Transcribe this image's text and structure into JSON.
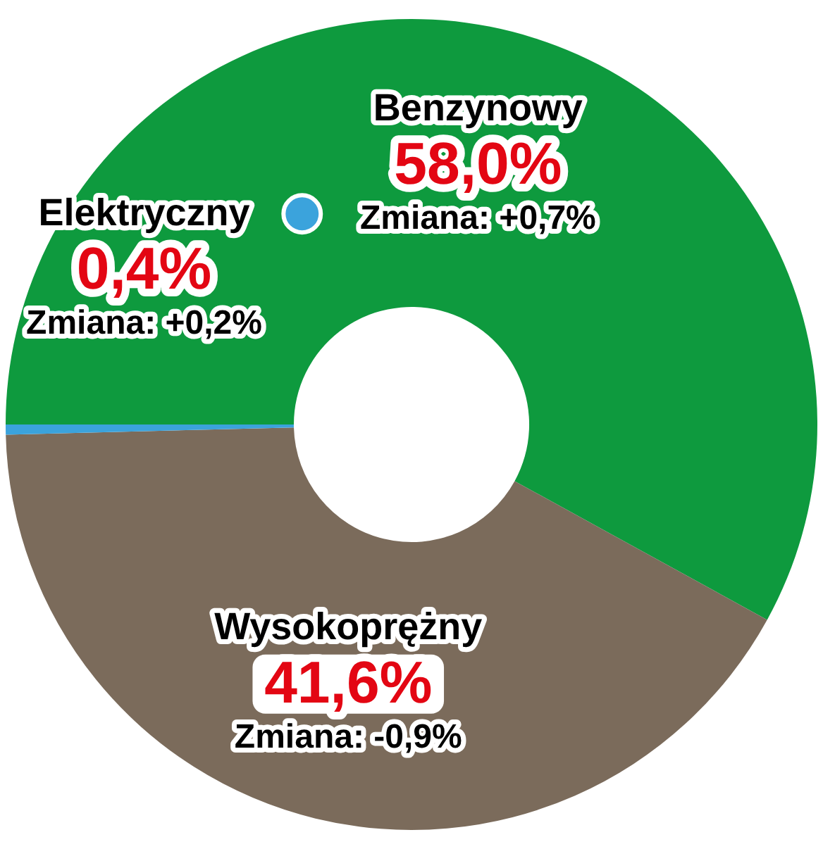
{
  "chart_data": {
    "type": "donut",
    "categories": [
      "Benzynowy",
      "Wysokoprężny",
      "Elektryczny"
    ],
    "values": [
      58.0,
      41.6,
      0.4
    ],
    "colors": [
      "#0e9a3e",
      "#7b6b5b",
      "#3ba3dc"
    ],
    "value_labels": [
      "58,0%",
      "41,6%",
      "0,4%"
    ],
    "annotations": [
      "Zmiana: +0,7%",
      "Zmiana: -0,9%",
      "Zmiana: +0,2%"
    ]
  }
}
